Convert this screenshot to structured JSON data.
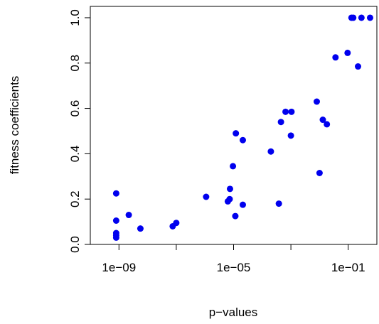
{
  "chart_data": {
    "type": "scatter",
    "title": "",
    "xlabel": "p−values",
    "ylabel": "fitness coefficients",
    "x_scale": "log10",
    "xlim": [
      1e-10,
      1
    ],
    "ylim": [
      0,
      1.05
    ],
    "x_ticks": [
      {
        "value": 1e-09,
        "label": "1e−09"
      },
      {
        "value": 1e-07,
        "label": ""
      },
      {
        "value": 1e-05,
        "label": "1e−05"
      },
      {
        "value": 0.001,
        "label": ""
      },
      {
        "value": 0.1,
        "label": "1e−01"
      }
    ],
    "y_ticks": [
      {
        "value": 0.0,
        "label": "0.0"
      },
      {
        "value": 0.2,
        "label": "0.2"
      },
      {
        "value": 0.4,
        "label": "0.4"
      },
      {
        "value": 0.6,
        "label": "0.6"
      },
      {
        "value": 0.8,
        "label": "0.8"
      },
      {
        "value": 1.0,
        "label": "1.0"
      }
    ],
    "grid": false,
    "point_color": "#0000ee",
    "points": [
      {
        "x": 8e-10,
        "y": 0.225
      },
      {
        "x": 8e-10,
        "y": 0.105
      },
      {
        "x": 8e-10,
        "y": 0.05
      },
      {
        "x": 8e-10,
        "y": 0.04
      },
      {
        "x": 8e-10,
        "y": 0.03
      },
      {
        "x": 2.2e-09,
        "y": 0.13
      },
      {
        "x": 5.6e-09,
        "y": 0.07
      },
      {
        "x": 7.5e-08,
        "y": 0.08
      },
      {
        "x": 1e-07,
        "y": 0.095
      },
      {
        "x": 1.1e-06,
        "y": 0.21
      },
      {
        "x": 6.3e-06,
        "y": 0.19
      },
      {
        "x": 7.3e-06,
        "y": 0.2
      },
      {
        "x": 7.5e-06,
        "y": 0.245
      },
      {
        "x": 9.5e-06,
        "y": 0.345
      },
      {
        "x": 1.15e-05,
        "y": 0.125
      },
      {
        "x": 1.2e-05,
        "y": 0.49
      },
      {
        "x": 2.1e-05,
        "y": 0.175
      },
      {
        "x": 2.1e-05,
        "y": 0.46
      },
      {
        "x": 0.0002,
        "y": 0.41
      },
      {
        "x": 0.00038,
        "y": 0.18
      },
      {
        "x": 0.00045,
        "y": 0.54
      },
      {
        "x": 0.00065,
        "y": 0.585
      },
      {
        "x": 0.001,
        "y": 0.48
      },
      {
        "x": 0.00105,
        "y": 0.585
      },
      {
        "x": 0.008,
        "y": 0.63
      },
      {
        "x": 0.01,
        "y": 0.315
      },
      {
        "x": 0.013,
        "y": 0.55
      },
      {
        "x": 0.018,
        "y": 0.53
      },
      {
        "x": 0.036,
        "y": 0.825
      },
      {
        "x": 0.095,
        "y": 0.845
      },
      {
        "x": 0.13,
        "y": 1.0
      },
      {
        "x": 0.15,
        "y": 1.0
      },
      {
        "x": 0.22,
        "y": 0.785
      },
      {
        "x": 0.29,
        "y": 1.0
      },
      {
        "x": 0.58,
        "y": 1.0
      }
    ]
  }
}
